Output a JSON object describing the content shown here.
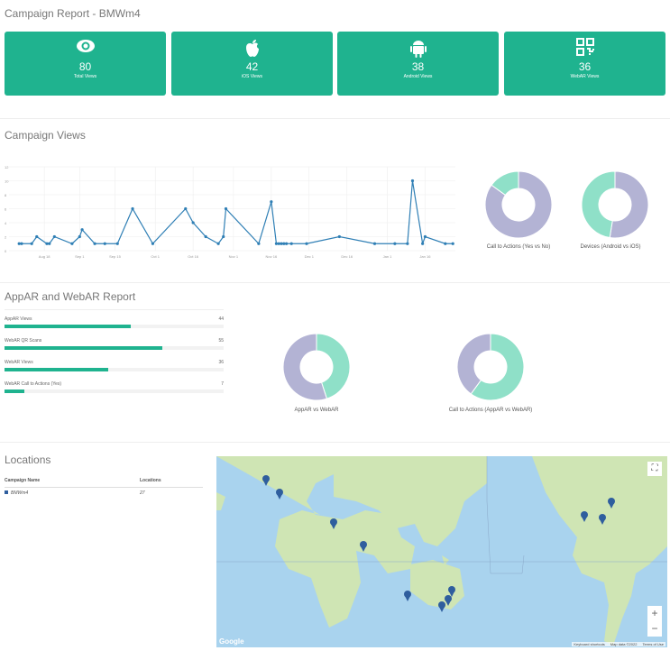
{
  "page_title": "Campaign Report - BMWm4",
  "accent": "#1fb38f",
  "cards": [
    {
      "icon": "eye-icon",
      "value": "80",
      "label": "Total Views"
    },
    {
      "icon": "apple-icon",
      "value": "42",
      "label": "iOS Views"
    },
    {
      "icon": "android-icon",
      "value": "38",
      "label": "Android Views"
    },
    {
      "icon": "qr-code-icon",
      "value": "36",
      "label": "WebAR Views"
    }
  ],
  "campaign_views": {
    "title": "Campaign Views"
  },
  "appar": {
    "title": "AppAR and WebAR Report",
    "bars": [
      {
        "label": "AppAR Views",
        "value": 44
      },
      {
        "label": "WebAR QR Scans",
        "value": 55
      },
      {
        "label": "WebAR Views",
        "value": 36
      },
      {
        "label": "WebAR Call to Actions (Yes)",
        "value": 7
      }
    ]
  },
  "locations": {
    "title": "Locations",
    "headers": [
      "Campaign Name",
      "Locations"
    ],
    "rows": [
      {
        "name": "BMWm4",
        "count": "27"
      }
    ]
  },
  "map": {
    "attribution": [
      "Keyboard shortcuts",
      "Map data ©2022",
      "Terms of Use"
    ],
    "logo": "Google",
    "zoom_in": "+",
    "zoom_out": "−",
    "fullscreen_icon": "fullscreen-icon"
  },
  "chart_data": [
    {
      "type": "line",
      "title": "",
      "ylim": [
        0,
        12
      ],
      "yticks": [
        0,
        2,
        4,
        6,
        8,
        10,
        12
      ],
      "xticks": [
        "Aug 18",
        "Sep 1",
        "Sep 15",
        "Oct 1",
        "Oct 16",
        "Nov 1",
        "Nov 16",
        "Dec 1",
        "Dec 16",
        "Jan 1",
        "Jan 16"
      ],
      "color": "#2f7fb5",
      "grid": true,
      "points": [
        [
          "Aug 8",
          1
        ],
        [
          "Aug 9",
          1
        ],
        [
          "Aug 13",
          1
        ],
        [
          "Aug 15",
          2
        ],
        [
          "Aug 19",
          1
        ],
        [
          "Aug 20",
          1
        ],
        [
          "Aug 22",
          2
        ],
        [
          "Aug 29",
          1
        ],
        [
          "Sep 1",
          2
        ],
        [
          "Sep 2",
          3
        ],
        [
          "Sep 7",
          1
        ],
        [
          "Sep 11",
          1
        ],
        [
          "Sep 16",
          1
        ],
        [
          "Sep 22",
          6
        ],
        [
          "Sep 30",
          1
        ],
        [
          "Oct 13",
          6
        ],
        [
          "Oct 16",
          4
        ],
        [
          "Oct 21",
          2
        ],
        [
          "Oct 26",
          1
        ],
        [
          "Oct 28",
          2
        ],
        [
          "Oct 29",
          6
        ],
        [
          "Nov 11",
          1
        ],
        [
          "Nov 16",
          7
        ],
        [
          "Nov 18",
          1
        ],
        [
          "Nov 19",
          1
        ],
        [
          "Nov 20",
          1
        ],
        [
          "Nov 21",
          1
        ],
        [
          "Nov 22",
          1
        ],
        [
          "Nov 24",
          1
        ],
        [
          "Nov 30",
          1
        ],
        [
          "Dec 13",
          2
        ],
        [
          "Dec 27",
          1
        ],
        [
          "Jan 4",
          1
        ],
        [
          "Jan 9",
          1
        ],
        [
          "Jan 11",
          10
        ],
        [
          "Jan 15",
          1
        ],
        [
          "Jan 16",
          2
        ],
        [
          "Jan 24",
          1
        ],
        [
          "Jan 27",
          1
        ]
      ]
    },
    {
      "type": "pie",
      "donut": true,
      "title": "Call to Actions (Yes vs No)",
      "slices": [
        {
          "value": 85,
          "color": "#b3b3d4"
        },
        {
          "value": 15,
          "color": "#8fe0c8"
        }
      ]
    },
    {
      "type": "pie",
      "donut": true,
      "title": "Devices (Android vs iOS)",
      "slices": [
        {
          "value": 42,
          "color": "#b3b3d4"
        },
        {
          "value": 38,
          "color": "#8fe0c8"
        }
      ]
    },
    {
      "type": "pie",
      "donut": true,
      "title": "AppAR vs WebAR",
      "slices": [
        {
          "value": 36,
          "color": "#8fe0c8"
        },
        {
          "value": 44,
          "color": "#b3b3d4"
        }
      ]
    },
    {
      "type": "pie",
      "donut": true,
      "title": "Call to Actions (AppAR vs WebAR)",
      "slices": [
        {
          "value": 60,
          "color": "#8fe0c8"
        },
        {
          "value": 40,
          "color": "#b3b3d4"
        }
      ]
    }
  ]
}
